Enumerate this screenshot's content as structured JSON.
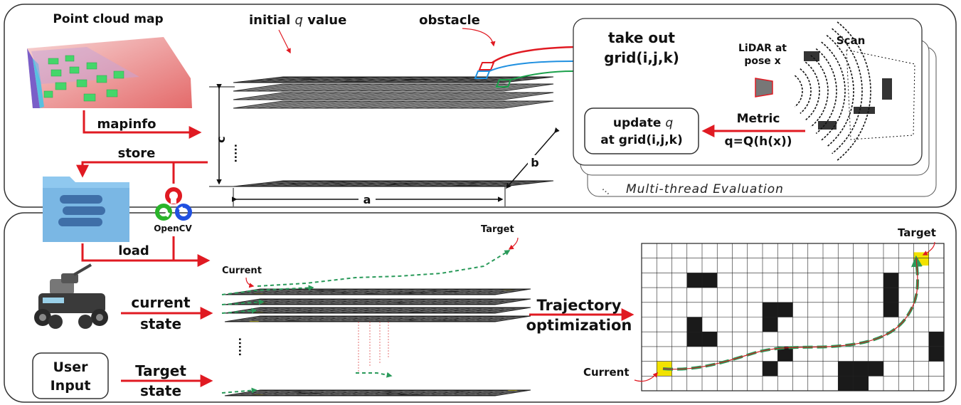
{
  "top_panel": {
    "point_cloud_title": "Point cloud map",
    "mapinfo_label": "mapinfo",
    "store_label": "store",
    "initial_q_prefix": "initial",
    "initial_q_symbol": "q",
    "initial_q_suffix": "value",
    "obstacle_label": "obstacle",
    "dim_a": "a",
    "dim_b": "b",
    "dim_c": "c",
    "take_out_line1": "take out",
    "take_out_line2": "grid(i,j,k)",
    "lidar_line1": "LiDAR at",
    "lidar_line2": "pose x",
    "scan_label": "Scan",
    "metric_line1": "Metric",
    "metric_line2": "q=Q(h(x))",
    "update_line1_prefix": "update",
    "update_symbol": "q",
    "update_line2": "at grid(i,j,k)",
    "multithread_label": "Multi-thread Evaluation"
  },
  "bottom_panel": {
    "load_label": "load",
    "opencv_label": "OpenCV",
    "current_state_line1": "current",
    "current_state_line2": "state",
    "user_input_line1": "User",
    "user_input_line2": "Input",
    "target_state_line1": "Target",
    "target_state_line2": "state",
    "current_label_stack": "Current",
    "target_label_stack": "Target",
    "trajectory_line1": "Trajectory",
    "trajectory_line2": "optimization",
    "current_label_grid": "Current",
    "target_label_grid": "Target"
  },
  "colors": {
    "arrow_red": "#e01a22",
    "obstacle": "#1a1a1a",
    "highlight_yellow": "#f2e200",
    "path_green": "#2a9a5a",
    "path_red": "#c82020",
    "grid_line": "#222222",
    "cyan": "#2090e0",
    "folder_blue": "#8fc8ef"
  }
}
